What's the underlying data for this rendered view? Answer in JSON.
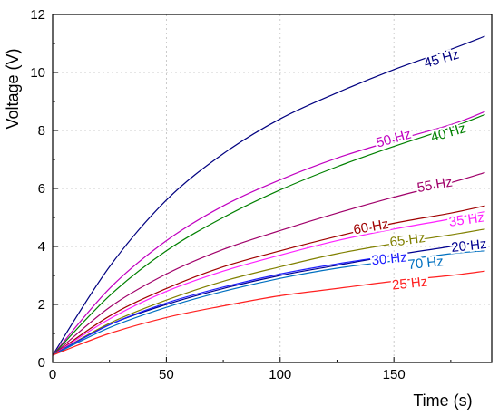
{
  "chart_data": {
    "type": "line",
    "title": "",
    "xlabel": "Time (s)",
    "ylabel": "Voltage (V)",
    "xlim": [
      0,
      193
    ],
    "ylim": [
      0,
      12
    ],
    "xticks": [
      0,
      50,
      100,
      150
    ],
    "yticks": [
      0,
      2,
      4,
      6,
      8,
      10,
      12
    ],
    "grid": true,
    "legend": "inline labels",
    "series": [
      {
        "name": "45 Hz",
        "color": "#000080",
        "x": [
          0,
          25,
          50,
          75,
          100,
          125,
          150,
          175,
          190
        ],
        "values": [
          0.25,
          3.3,
          5.6,
          7.2,
          8.4,
          9.3,
          10.1,
          10.8,
          11.25
        ]
      },
      {
        "name": "50 Hz",
        "color": "#c000c0",
        "x": [
          0,
          25,
          50,
          75,
          100,
          125,
          150,
          175,
          190
        ],
        "values": [
          0.25,
          2.55,
          4.2,
          5.4,
          6.3,
          7.05,
          7.65,
          8.2,
          8.65
        ]
      },
      {
        "name": "40 Hz",
        "color": "#008000",
        "x": [
          0,
          25,
          50,
          75,
          100,
          125,
          150,
          175,
          190
        ],
        "values": [
          0.25,
          2.3,
          3.85,
          5.0,
          5.95,
          6.75,
          7.45,
          8.1,
          8.55
        ]
      },
      {
        "name": "55 Hz",
        "color": "#a0006a",
        "x": [
          0,
          25,
          50,
          75,
          100,
          125,
          150,
          175,
          190
        ],
        "values": [
          0.25,
          1.9,
          3.05,
          3.9,
          4.55,
          5.15,
          5.7,
          6.2,
          6.55
        ]
      },
      {
        "name": "60 Hz",
        "color": "#a00000",
        "x": [
          0,
          25,
          50,
          75,
          100,
          125,
          150,
          175,
          190
        ],
        "values": [
          0.25,
          1.6,
          2.55,
          3.3,
          3.85,
          4.35,
          4.8,
          5.15,
          5.4
        ]
      },
      {
        "name": "35 Hz",
        "color": "#ff20ff",
        "x": [
          0,
          25,
          50,
          75,
          100,
          125,
          150,
          175,
          190
        ],
        "values": [
          0.25,
          1.5,
          2.45,
          3.15,
          3.7,
          4.2,
          4.6,
          4.95,
          5.2
        ]
      },
      {
        "name": "65 Hz",
        "color": "#808000",
        "x": [
          0,
          25,
          50,
          75,
          100,
          125,
          150,
          175,
          190
        ],
        "values": [
          0.25,
          1.35,
          2.15,
          2.8,
          3.3,
          3.75,
          4.1,
          4.4,
          4.6
        ]
      },
      {
        "name": "20 Hz",
        "color": "#000090",
        "x": [
          0,
          25,
          50,
          75,
          100,
          125,
          150,
          175,
          190
        ],
        "values": [
          0.25,
          1.3,
          2.0,
          2.55,
          3.0,
          3.35,
          3.7,
          4.0,
          4.2
        ]
      },
      {
        "name": "30 Hz",
        "color": "#2020ff",
        "x": [
          0,
          25,
          50,
          75,
          100,
          125,
          150
        ],
        "values": [
          0.25,
          1.3,
          2.05,
          2.6,
          3.05,
          3.4,
          3.7
        ]
      },
      {
        "name": "70 Hz",
        "color": "#0070c0",
        "x": [
          0,
          25,
          50,
          75,
          100,
          125,
          150,
          175,
          190
        ],
        "values": [
          0.25,
          1.2,
          1.9,
          2.45,
          2.9,
          3.25,
          3.5,
          3.75,
          3.85
        ]
      },
      {
        "name": "25 Hz",
        "color": "#ff2020",
        "x": [
          0,
          25,
          50,
          75,
          100,
          125,
          150,
          175,
          190
        ],
        "values": [
          0.25,
          1.0,
          1.55,
          1.95,
          2.3,
          2.55,
          2.8,
          3.0,
          3.15
        ]
      }
    ],
    "labels": [
      {
        "text": "45 Hz",
        "x": 171,
        "y": 10.45,
        "color": "#000080",
        "angle": -16
      },
      {
        "text": "50 Hz",
        "x": 150,
        "y": 7.7,
        "color": "#c000c0",
        "angle": -16
      },
      {
        "text": "40 Hz",
        "x": 174,
        "y": 7.9,
        "color": "#008000",
        "angle": -16
      },
      {
        "text": "55 Hz",
        "x": 168,
        "y": 6.1,
        "color": "#a0006a",
        "angle": -10
      },
      {
        "text": "60 Hz",
        "x": 140,
        "y": 4.65,
        "color": "#a00000",
        "angle": -10
      },
      {
        "text": "35 Hz",
        "x": 182,
        "y": 4.9,
        "color": "#ff20ff",
        "angle": -8
      },
      {
        "text": "65 Hz",
        "x": 156,
        "y": 4.2,
        "color": "#808000",
        "angle": -8
      },
      {
        "text": "20 Hz",
        "x": 183,
        "y": 4.0,
        "color": "#000090",
        "angle": -6
      },
      {
        "text": "30 Hz",
        "x": 148,
        "y": 3.55,
        "color": "#2020ff",
        "angle": -6
      },
      {
        "text": "70 Hz",
        "x": 164,
        "y": 3.4,
        "color": "#0070c0",
        "angle": -6
      },
      {
        "text": "25 Hz",
        "x": 157,
        "y": 2.7,
        "color": "#ff2020",
        "angle": -6
      }
    ]
  }
}
